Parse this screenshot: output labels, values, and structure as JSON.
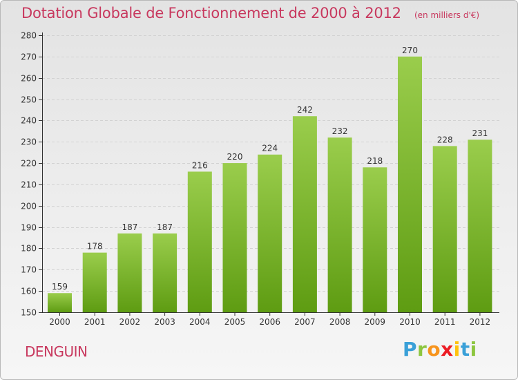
{
  "chart_data": {
    "type": "bar",
    "title": "Dotation Globale de Fonctionnement de 2000 à 2012",
    "subtitle": "(en milliers d'€)",
    "categories": [
      "2000",
      "2001",
      "2002",
      "2003",
      "2004",
      "2005",
      "2006",
      "2007",
      "2008",
      "2009",
      "2010",
      "2011",
      "2012"
    ],
    "values": [
      159,
      178,
      187,
      187,
      216,
      220,
      224,
      242,
      232,
      218,
      270,
      228,
      231
    ],
    "ylim": [
      150,
      280
    ],
    "yticks": [
      150,
      160,
      170,
      180,
      190,
      200,
      210,
      220,
      230,
      240,
      250,
      260,
      270,
      280
    ],
    "grid": true,
    "bar_color_top": "#9acd4c",
    "bar_color_bottom": "#5e9c12",
    "data_labels": true
  },
  "commune": "DENGUIN",
  "brand": {
    "letters": [
      "P",
      "r",
      "o",
      "x",
      "i",
      "t",
      "i"
    ],
    "colors": [
      "#3aa0d8",
      "#8dc63f",
      "#f7941d",
      "#ec1c24",
      "#ffc20e",
      "#3aa0d8",
      "#8dc63f"
    ]
  },
  "colors": {
    "accent": "#c8385e",
    "axis": "#333333",
    "grid": "#d2d2d2"
  }
}
